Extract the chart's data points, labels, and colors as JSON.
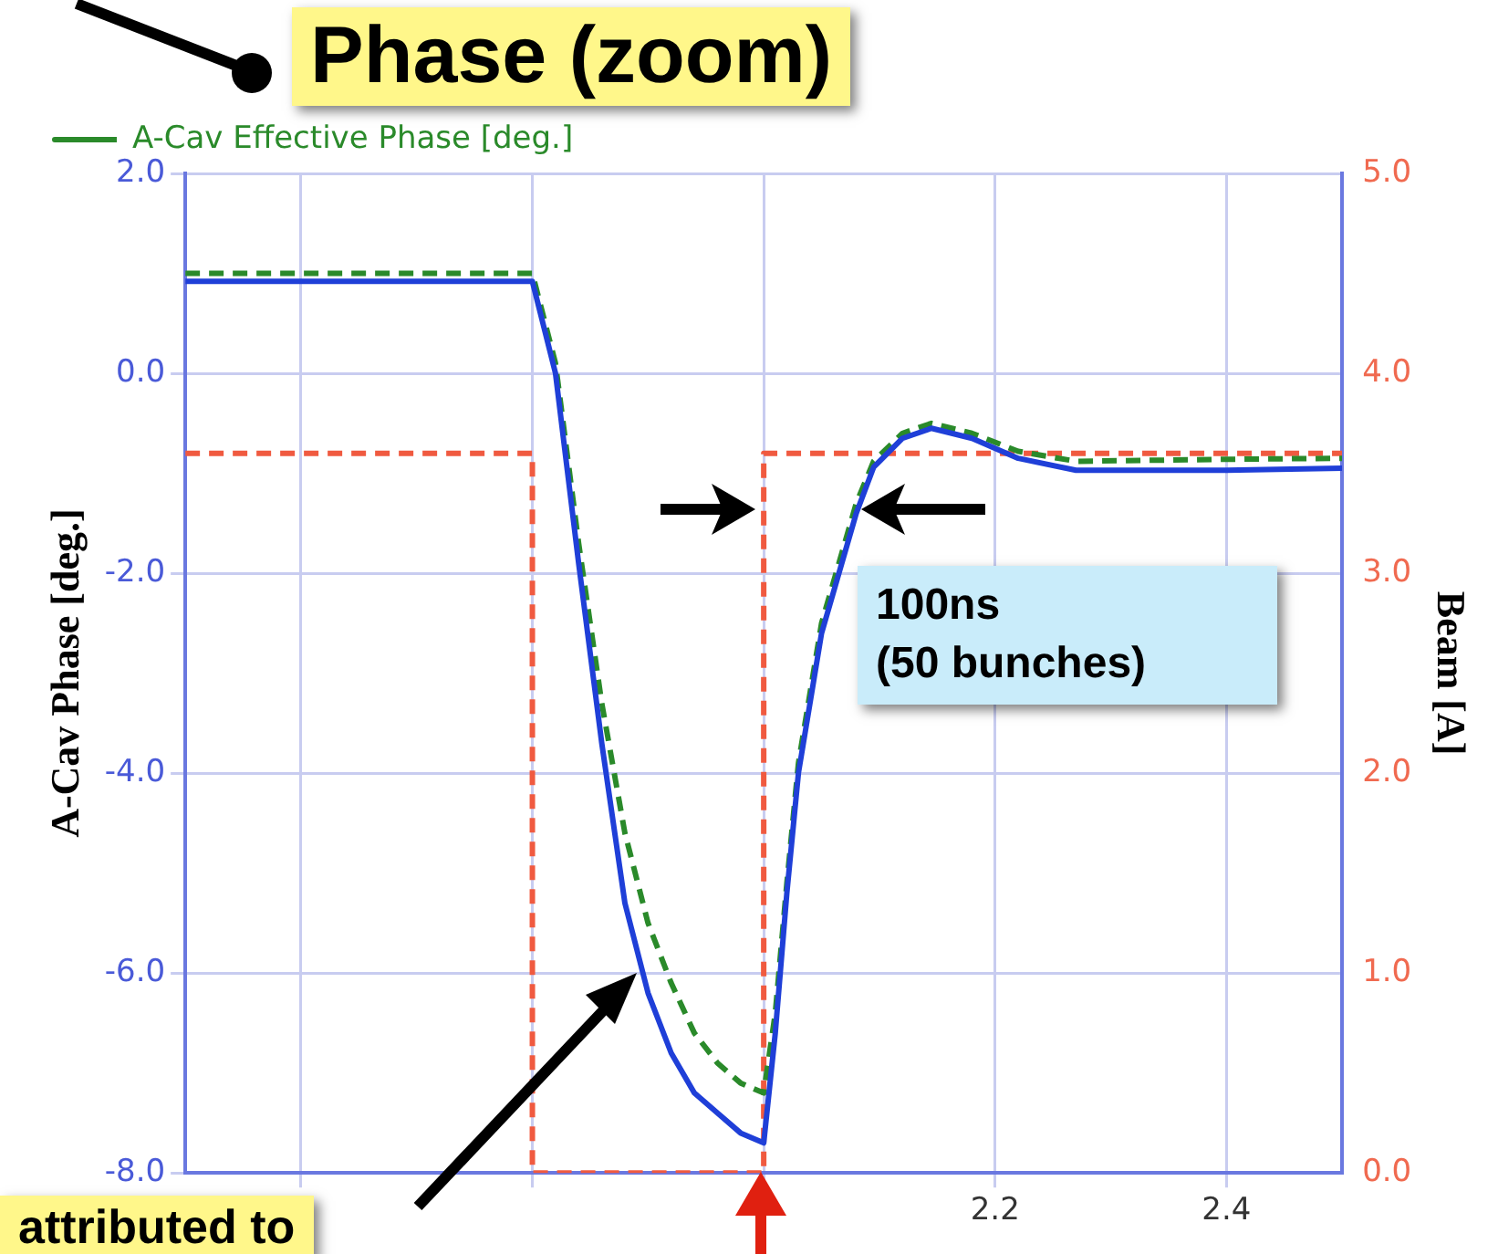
{
  "chart_data": {
    "type": "line",
    "title": "Phase (zoom)",
    "ylabel": "A-Cav Phase [deg.]",
    "y2label": "Beam [A]",
    "annotations": [
      "100ns\n(50 bunches)",
      "attributed to"
    ],
    "xlim": [
      1.5,
      2.5
    ],
    "xticks": [
      {
        "value": 1.6,
        "label": null
      },
      {
        "value": 1.8,
        "label": null
      },
      {
        "value": 2.0,
        "label": null
      },
      2.2,
      2.4
    ],
    "ylim": [
      -8,
      2
    ],
    "yticks": [
      {
        "value": -8,
        "label": "-8.0"
      },
      {
        "value": -6,
        "label": "-6.0"
      },
      {
        "value": -4,
        "label": "-4.0"
      },
      {
        "value": -2,
        "label": "-2.0"
      },
      {
        "value": 0,
        "label": "0.0"
      },
      {
        "value": 2,
        "label": "2.0"
      }
    ],
    "y2lim": [
      0,
      5
    ],
    "y2ticks": [
      {
        "value": 0,
        "label": "0.0"
      },
      {
        "value": 1,
        "label": "1.0"
      },
      {
        "value": 2,
        "label": "2.0"
      },
      {
        "value": 3,
        "label": "3.0"
      },
      {
        "value": 4,
        "label": "4.0"
      },
      {
        "value": 5,
        "label": "5.0"
      }
    ],
    "grid": true,
    "legend": "top left",
    "series": [
      {
        "color": "#1f3fd8",
        "line_style": "solid",
        "x": [
          1.5,
          1.8,
          1.82,
          1.84,
          1.86,
          1.88,
          1.9,
          1.92,
          1.94,
          1.96,
          1.98,
          2.0,
          2.01,
          2.02,
          2.03,
          2.05,
          2.065,
          2.08,
          2.095,
          2.12,
          2.145,
          2.18,
          2.22,
          2.27,
          2.4,
          2.5
        ],
        "values": [
          0.92,
          0.92,
          0.0,
          -1.9,
          -3.7,
          -5.3,
          -6.2,
          -6.8,
          -7.2,
          -7.4,
          -7.6,
          -7.7,
          -6.6,
          -5.2,
          -4.0,
          -2.6,
          -2.0,
          -1.4,
          -0.94,
          -0.65,
          -0.55,
          -0.65,
          -0.85,
          -0.97,
          -0.97,
          -0.95
        ]
      },
      {
        "name": "A-Cav Effective Phase [deg.]",
        "color": "#2a8a2a",
        "line_style": "dashed",
        "x": [
          1.5,
          1.8,
          1.82,
          1.84,
          1.86,
          1.88,
          1.9,
          1.92,
          1.94,
          1.96,
          1.98,
          2.0,
          2.01,
          2.02,
          2.03,
          2.05,
          2.065,
          2.08,
          2.095,
          2.12,
          2.145,
          2.18,
          2.22,
          2.27,
          2.4,
          2.5
        ],
        "values": [
          1.0,
          1.0,
          0.1,
          -1.7,
          -3.3,
          -4.6,
          -5.5,
          -6.1,
          -6.6,
          -6.9,
          -7.1,
          -7.2,
          -6.4,
          -5.1,
          -3.9,
          -2.5,
          -1.9,
          -1.3,
          -0.88,
          -0.6,
          -0.5,
          -0.6,
          -0.78,
          -0.88,
          -0.86,
          -0.85
        ]
      },
      {
        "type": "step",
        "axis": "y2",
        "color": "#f05a40",
        "line_style": "dashed",
        "x": [
          1.5,
          1.8,
          2.0,
          2.5
        ],
        "values": [
          3.6,
          0,
          3.6,
          3.6
        ]
      }
    ]
  }
}
